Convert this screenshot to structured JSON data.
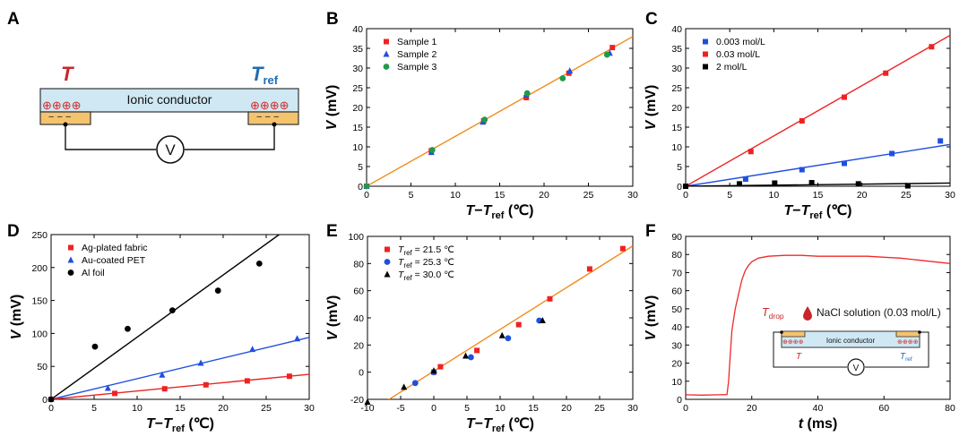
{
  "panel_letters": [
    "A",
    "B",
    "C",
    "D",
    "E",
    "F"
  ],
  "schematic_a": {
    "t_label": "T",
    "tref_label": "T",
    "tref_sub": "ref",
    "conductor_label": "Ionic conductor",
    "voltmeter_label": "V",
    "plus_symbols": "⊕⊕⊕⊕",
    "minus_symbols": "− − −"
  },
  "colors": {
    "red": "#ee2222",
    "blue": "#1f4fe0",
    "black": "#000000",
    "green": "#1f9a4a",
    "orange_fit": "#f28c1e",
    "panel_f_curve": "#ee2a2a",
    "conductor_fill": "#cfe8f3",
    "electrode_fill": "#f4c36e",
    "t_label_red": "#c8262b",
    "tref_label_blue": "#1f6db3"
  },
  "chart_data": [
    {
      "id": "B",
      "type": "scatter",
      "xlabel_main": "T",
      "xlabel_mid": "−",
      "xlabel_ref": "T",
      "xlabel_sub": "ref",
      "xlabel_unit": " (℃)",
      "ylabel_main": "V",
      "ylabel_unit": " (mV)",
      "xlim": [
        0,
        30
      ],
      "ylim": [
        0,
        40
      ],
      "xticks": [
        0,
        5,
        10,
        15,
        20,
        25,
        30
      ],
      "yticks": [
        0,
        5,
        10,
        15,
        20,
        25,
        30,
        35,
        40
      ],
      "legend_position": "top-left",
      "series": [
        {
          "name": "Sample 1",
          "marker": "square",
          "color": "#ee2222",
          "points": [
            [
              0,
              0
            ],
            [
              7.3,
              9.0
            ],
            [
              13.2,
              16.6
            ],
            [
              18.0,
              22.5
            ],
            [
              22.8,
              28.7
            ],
            [
              27.7,
              35.2
            ]
          ]
        },
        {
          "name": "Sample 2",
          "marker": "triangle",
          "color": "#1f4fe0",
          "points": [
            [
              0,
              0
            ],
            [
              7.3,
              8.6
            ],
            [
              13.1,
              16.3
            ],
            [
              18.0,
              23.2
            ],
            [
              22.9,
              29.3
            ],
            [
              27.4,
              33.8
            ]
          ]
        },
        {
          "name": "Sample 3",
          "marker": "circle",
          "color": "#1f9a4a",
          "points": [
            [
              0,
              0
            ],
            [
              7.4,
              9.2
            ],
            [
              13.3,
              16.9
            ],
            [
              18.1,
              23.6
            ],
            [
              22.1,
              27.4
            ],
            [
              27.1,
              33.4
            ]
          ]
        }
      ],
      "fits": [
        {
          "color": "#f28c1e",
          "from": [
            0,
            0
          ],
          "to": [
            30,
            38.0
          ]
        }
      ]
    },
    {
      "id": "C",
      "type": "scatter",
      "xlabel_main": "T",
      "xlabel_mid": "−",
      "xlabel_ref": "T",
      "xlabel_sub": "ref",
      "xlabel_unit": " (℃)",
      "ylabel_main": "V",
      "ylabel_unit": " (mV)",
      "xlim": [
        0,
        30
      ],
      "ylim": [
        0,
        40
      ],
      "xticks": [
        0,
        5,
        10,
        15,
        20,
        25,
        30
      ],
      "yticks": [
        0,
        5,
        10,
        15,
        20,
        25,
        30,
        35,
        40
      ],
      "legend_position": "top-left",
      "series": [
        {
          "name": "0.003 mol/L",
          "marker": "square",
          "color": "#1f4fe0",
          "points": [
            [
              0,
              0
            ],
            [
              6.8,
              1.8
            ],
            [
              13.2,
              4.2
            ],
            [
              18.0,
              5.8
            ],
            [
              23.4,
              8.3
            ],
            [
              28.9,
              11.5
            ]
          ]
        },
        {
          "name": "0.03 mol/L",
          "marker": "square",
          "color": "#ee2222",
          "points": [
            [
              0,
              0
            ],
            [
              7.4,
              8.8
            ],
            [
              13.2,
              16.6
            ],
            [
              18.0,
              22.6
            ],
            [
              22.7,
              28.7
            ],
            [
              27.9,
              35.4
            ]
          ]
        },
        {
          "name": "2 mol/L",
          "marker": "square",
          "color": "#000000",
          "points": [
            [
              0,
              0
            ],
            [
              6.1,
              0.6
            ],
            [
              10.1,
              0.8
            ],
            [
              14.3,
              0.9
            ],
            [
              19.6,
              0.6
            ],
            [
              25.2,
              0.1
            ]
          ]
        }
      ],
      "fits": [
        {
          "color": "#ee2222",
          "from": [
            0,
            0
          ],
          "to": [
            30,
            38.3
          ]
        },
        {
          "color": "#1f4fe0",
          "from": [
            0,
            0
          ],
          "to": [
            30,
            10.6
          ]
        },
        {
          "color": "#000000",
          "from": [
            0,
            0
          ],
          "to": [
            30,
            0.8
          ]
        }
      ]
    },
    {
      "id": "D",
      "type": "scatter",
      "xlabel_main": "T",
      "xlabel_mid": "−",
      "xlabel_ref": "T",
      "xlabel_sub": "ref",
      "xlabel_unit": " (℃)",
      "ylabel_main": "V",
      "ylabel_unit": " (mV)",
      "xlim": [
        0,
        30
      ],
      "ylim": [
        0,
        250
      ],
      "xticks": [
        0,
        5,
        10,
        15,
        20,
        25,
        30
      ],
      "yticks": [
        0,
        50,
        100,
        150,
        200,
        250
      ],
      "legend_position": "top-left",
      "series": [
        {
          "name": "Ag-plated fabric",
          "marker": "square",
          "color": "#ee2222",
          "points": [
            [
              0,
              0
            ],
            [
              7.4,
              9
            ],
            [
              13.2,
              16
            ],
            [
              18.0,
              22
            ],
            [
              22.8,
              28
            ],
            [
              27.7,
              35
            ]
          ]
        },
        {
          "name": "Au-coated PET",
          "marker": "triangle",
          "color": "#1f4fe0",
          "points": [
            [
              0,
              0
            ],
            [
              6.6,
              17
            ],
            [
              12.9,
              37
            ],
            [
              17.4,
              55
            ],
            [
              23.4,
              76
            ],
            [
              28.6,
              92
            ]
          ]
        },
        {
          "name": "Al foil",
          "marker": "circle",
          "color": "#000000",
          "points": [
            [
              0,
              0
            ],
            [
              5.1,
              80
            ],
            [
              8.9,
              107
            ],
            [
              14.1,
              135
            ],
            [
              19.4,
              165
            ],
            [
              24.2,
              206
            ]
          ]
        }
      ],
      "fits": [
        {
          "color": "#000000",
          "from": [
            0,
            0
          ],
          "to": [
            26.5,
            250
          ]
        },
        {
          "color": "#1f4fe0",
          "from": [
            0,
            0
          ],
          "to": [
            30,
            94
          ]
        },
        {
          "color": "#ee2222",
          "from": [
            0,
            0
          ],
          "to": [
            30,
            38
          ]
        }
      ]
    },
    {
      "id": "E",
      "type": "scatter",
      "xlabel_main": "T",
      "xlabel_mid": "−",
      "xlabel_ref": "T",
      "xlabel_sub": "ref",
      "xlabel_unit": " (℃)",
      "ylabel_main": "V",
      "ylabel_unit": " (mV)",
      "xlim": [
        -10,
        30
      ],
      "ylim": [
        -20,
        100
      ],
      "xticks": [
        -10,
        -5,
        0,
        5,
        10,
        15,
        20,
        25,
        30
      ],
      "yticks": [
        -20,
        0,
        20,
        40,
        60,
        80,
        100
      ],
      "legend_position": "top-left",
      "legend_prefix": "T",
      "legend_sub": "ref",
      "series": [
        {
          "name": "21.5 ℃",
          "marker": "square",
          "color": "#ee2222",
          "points": [
            [
              0,
              0
            ],
            [
              1,
              4
            ],
            [
              6.5,
              16
            ],
            [
              12.8,
              35
            ],
            [
              17.5,
              54
            ],
            [
              23.5,
              76
            ],
            [
              28.5,
              91
            ]
          ]
        },
        {
          "name": "25.3 ℃",
          "marker": "circle",
          "color": "#1f4fe0",
          "points": [
            [
              -2.8,
              -8
            ],
            [
              0,
              0
            ],
            [
              5.6,
              11
            ],
            [
              11.2,
              25
            ],
            [
              15.9,
              38
            ]
          ]
        },
        {
          "name": "30.0 ℃",
          "marker": "triangle",
          "color": "#000000",
          "points": [
            [
              -10,
              -22
            ],
            [
              -4.5,
              -11
            ],
            [
              0,
              1
            ],
            [
              4.8,
              12
            ],
            [
              10.3,
              27
            ],
            [
              16.4,
              38
            ]
          ]
        }
      ],
      "fits": [
        {
          "color": "#f28c1e",
          "from": [
            -10,
            -30
          ],
          "to": [
            30,
            93
          ]
        }
      ]
    },
    {
      "id": "F",
      "type": "line",
      "xlabel_main": "t",
      "xlabel_unit": " (ms)",
      "ylabel_main": "V",
      "ylabel_unit": " (mV)",
      "xlim": [
        0,
        80
      ],
      "ylim": [
        0,
        90
      ],
      "xticks": [
        0,
        20,
        40,
        60,
        80
      ],
      "yticks": [
        0,
        10,
        20,
        30,
        40,
        50,
        60,
        70,
        80,
        90
      ],
      "series": [
        {
          "name": "",
          "color": "#ee2a2a",
          "points": [
            [
              0,
              2.5
            ],
            [
              5,
              2.3
            ],
            [
              10,
              2.5
            ],
            [
              12.5,
              2.6
            ],
            [
              13,
              10
            ],
            [
              13.5,
              25
            ],
            [
              14,
              38
            ],
            [
              15,
              50
            ],
            [
              16,
              58
            ],
            [
              17,
              66
            ],
            [
              18,
              71
            ],
            [
              19,
              74
            ],
            [
              20,
              76
            ],
            [
              22,
              78
            ],
            [
              25,
              79
            ],
            [
              30,
              79.5
            ],
            [
              35,
              79.5
            ],
            [
              40,
              79
            ],
            [
              45,
              79
            ],
            [
              50,
              79
            ],
            [
              55,
              79
            ],
            [
              60,
              78.5
            ],
            [
              65,
              78
            ],
            [
              70,
              77
            ],
            [
              75,
              76
            ],
            [
              80,
              75
            ]
          ]
        }
      ],
      "inset": {
        "drop_label": "T",
        "drop_sub": "drop",
        "solution_label": "NaCl solution (0.03 mol/L)",
        "conductor_label": "Ionic conductor",
        "t_label": "T",
        "tref_label": "T",
        "tref_sub": "ref",
        "voltmeter_label": "V",
        "plus_symbols": "⊕⊕⊕⊕"
      }
    }
  ]
}
